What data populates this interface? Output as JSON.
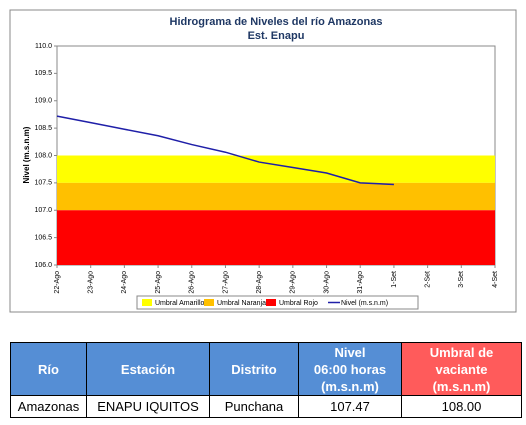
{
  "chart_data": {
    "type": "line",
    "title": "Hidrograma de Niveles del río Amazonas",
    "subtitle": "Est. Enapu",
    "y_label": "Nivel (m.s.n.m)",
    "categories": [
      "22-Ago",
      "23-Ago",
      "24-Ago",
      "25-Ago",
      "26-Ago",
      "27-Ago",
      "28-Ago",
      "29-Ago",
      "30-Ago",
      "31-Ago",
      "1-Set",
      "2-Set",
      "3-Set",
      "4-Set"
    ],
    "bands": [
      {
        "name": "Umbral Amarillo",
        "color": "#ffff00",
        "range": [
          107.5,
          108.0
        ]
      },
      {
        "name": "Umbral Naranja",
        "color": "#ffc000",
        "range": [
          107.0,
          107.5
        ]
      },
      {
        "name": "Umbral Rojo",
        "color": "#ff0000",
        "range": [
          106.0,
          107.0
        ]
      }
    ],
    "series": [
      {
        "name": "Nivel (m.s.n.m)",
        "color": "#1f1fa8",
        "values": [
          108.72,
          108.6,
          108.48,
          108.36,
          108.2,
          108.06,
          107.88,
          107.78,
          107.68,
          107.5,
          107.47,
          null,
          null,
          null
        ]
      }
    ],
    "ylim": [
      106.0,
      110.0
    ],
    "yticks": [
      {
        "value": 106,
        "label": "106.0"
      },
      {
        "value": 106.5,
        "label": "106.5"
      },
      {
        "value": 107,
        "label": "107.0"
      },
      {
        "value": 107.5,
        "label": "107.5"
      },
      {
        "value": 108,
        "label": "108.0"
      },
      {
        "value": 108.5,
        "label": "108.5"
      },
      {
        "value": 109,
        "label": "109.0"
      },
      {
        "value": 109.5,
        "label": "109.5"
      },
      {
        "value": 110,
        "label": "110.0"
      }
    ]
  },
  "table": {
    "headers": [
      [
        "Río"
      ],
      [
        "Estación"
      ],
      [
        "Distrito"
      ],
      [
        "Nivel",
        "06:00 horas",
        "(m.s.n.m)"
      ],
      [
        "Umbral de",
        "vaciante",
        "(m.s.n.m)"
      ]
    ],
    "rows": [
      [
        "Amazonas",
        "ENAPU IQUITOS",
        "Punchana",
        "107.47",
        "108.00"
      ]
    ]
  }
}
